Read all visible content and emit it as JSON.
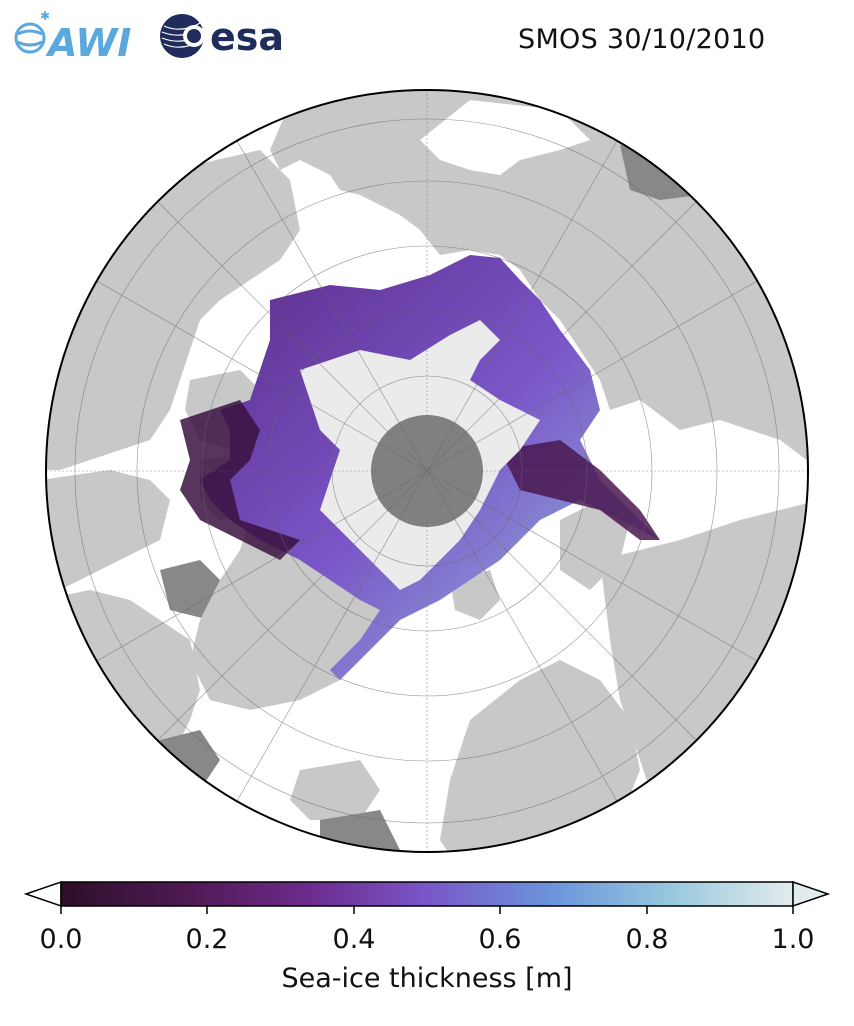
{
  "title": "SMOS 30/10/2010",
  "logos": {
    "left": "AWI",
    "right": "esa"
  },
  "colors": {
    "ocean": "#ffffff",
    "land": "#c8c8c8",
    "land_dark": "#888888",
    "pole_hole": "#808080",
    "thick_ice": "#ebebeb",
    "awi_blue": "#5aa8dc",
    "esa_navy": "#1f2c5c"
  },
  "map": {
    "projection": "north-polar-stereographic",
    "graticule": true
  },
  "colorbar": {
    "label": "Sea-ice thickness [m]",
    "min": 0.0,
    "max": 1.0,
    "extend": "both",
    "ticks": [
      "0.0",
      "0.2",
      "0.4",
      "0.6",
      "0.8",
      "1.0"
    ],
    "colormap_stops": [
      "#2d0f2a",
      "#4e1a52",
      "#6b2a8a",
      "#7a56c8",
      "#6b94dc",
      "#96c8de",
      "#e2ecec"
    ]
  }
}
